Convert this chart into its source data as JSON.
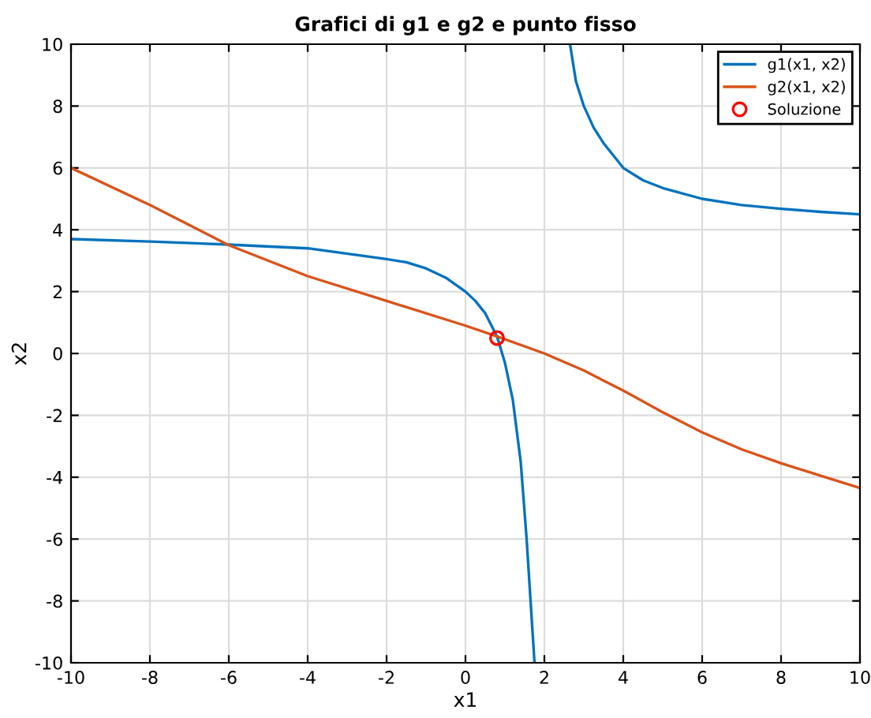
{
  "chart_data": {
    "type": "line",
    "title": "Grafici di g1 e g2 e punto fisso",
    "xlabel": "x1",
    "ylabel": "x2",
    "xlim": [
      -10,
      10
    ],
    "xticks": [
      -10,
      -8,
      -6,
      -4,
      -2,
      0,
      2,
      4,
      6,
      8,
      10
    ],
    "ylim": [
      -10,
      10
    ],
    "yticks": [
      -10,
      -8,
      -6,
      -4,
      -2,
      0,
      2,
      4,
      6,
      8,
      10
    ],
    "grid": true,
    "legend": "top right",
    "series": [
      {
        "name": "g1(x1, x2)",
        "color": "#0072bd",
        "x": [
          -10,
          -8,
          -6,
          -4,
          -2,
          -1.5,
          -1,
          -0.5,
          0,
          0.25,
          0.5,
          0.8,
          1.0,
          1.2,
          1.4,
          1.55,
          1.65,
          1.75,
          null,
          2.65,
          2.8,
          3,
          3.25,
          3.5,
          4,
          4.5,
          5,
          6,
          7,
          8,
          9,
          10
        ],
        "values": [
          3.7,
          3.62,
          3.52,
          3.4,
          3.05,
          2.95,
          2.75,
          2.45,
          2.0,
          1.7,
          1.3,
          0.55,
          -0.3,
          -1.5,
          -3.5,
          -6,
          -8,
          -10,
          null,
          10,
          8.8,
          8,
          7.3,
          6.8,
          6.0,
          5.6,
          5.35,
          5.0,
          4.8,
          4.68,
          4.58,
          4.5
        ]
      },
      {
        "name": "g2(x1, x2)",
        "color": "#d95319",
        "x": [
          -10,
          -8,
          -6,
          -4,
          -2,
          0,
          0.8,
          2,
          3,
          4,
          5,
          6,
          7,
          8,
          9,
          10
        ],
        "values": [
          6,
          4.8,
          3.5,
          2.5,
          1.7,
          0.9,
          0.55,
          0,
          -0.55,
          -1.2,
          -1.9,
          -2.55,
          -3.1,
          -3.55,
          -3.95,
          -4.35
        ]
      },
      {
        "name": "Soluzione",
        "type": "scatter",
        "marker": "circle",
        "color": "#ff0000",
        "x": [
          0.8
        ],
        "values": [
          0.5
        ]
      }
    ]
  }
}
